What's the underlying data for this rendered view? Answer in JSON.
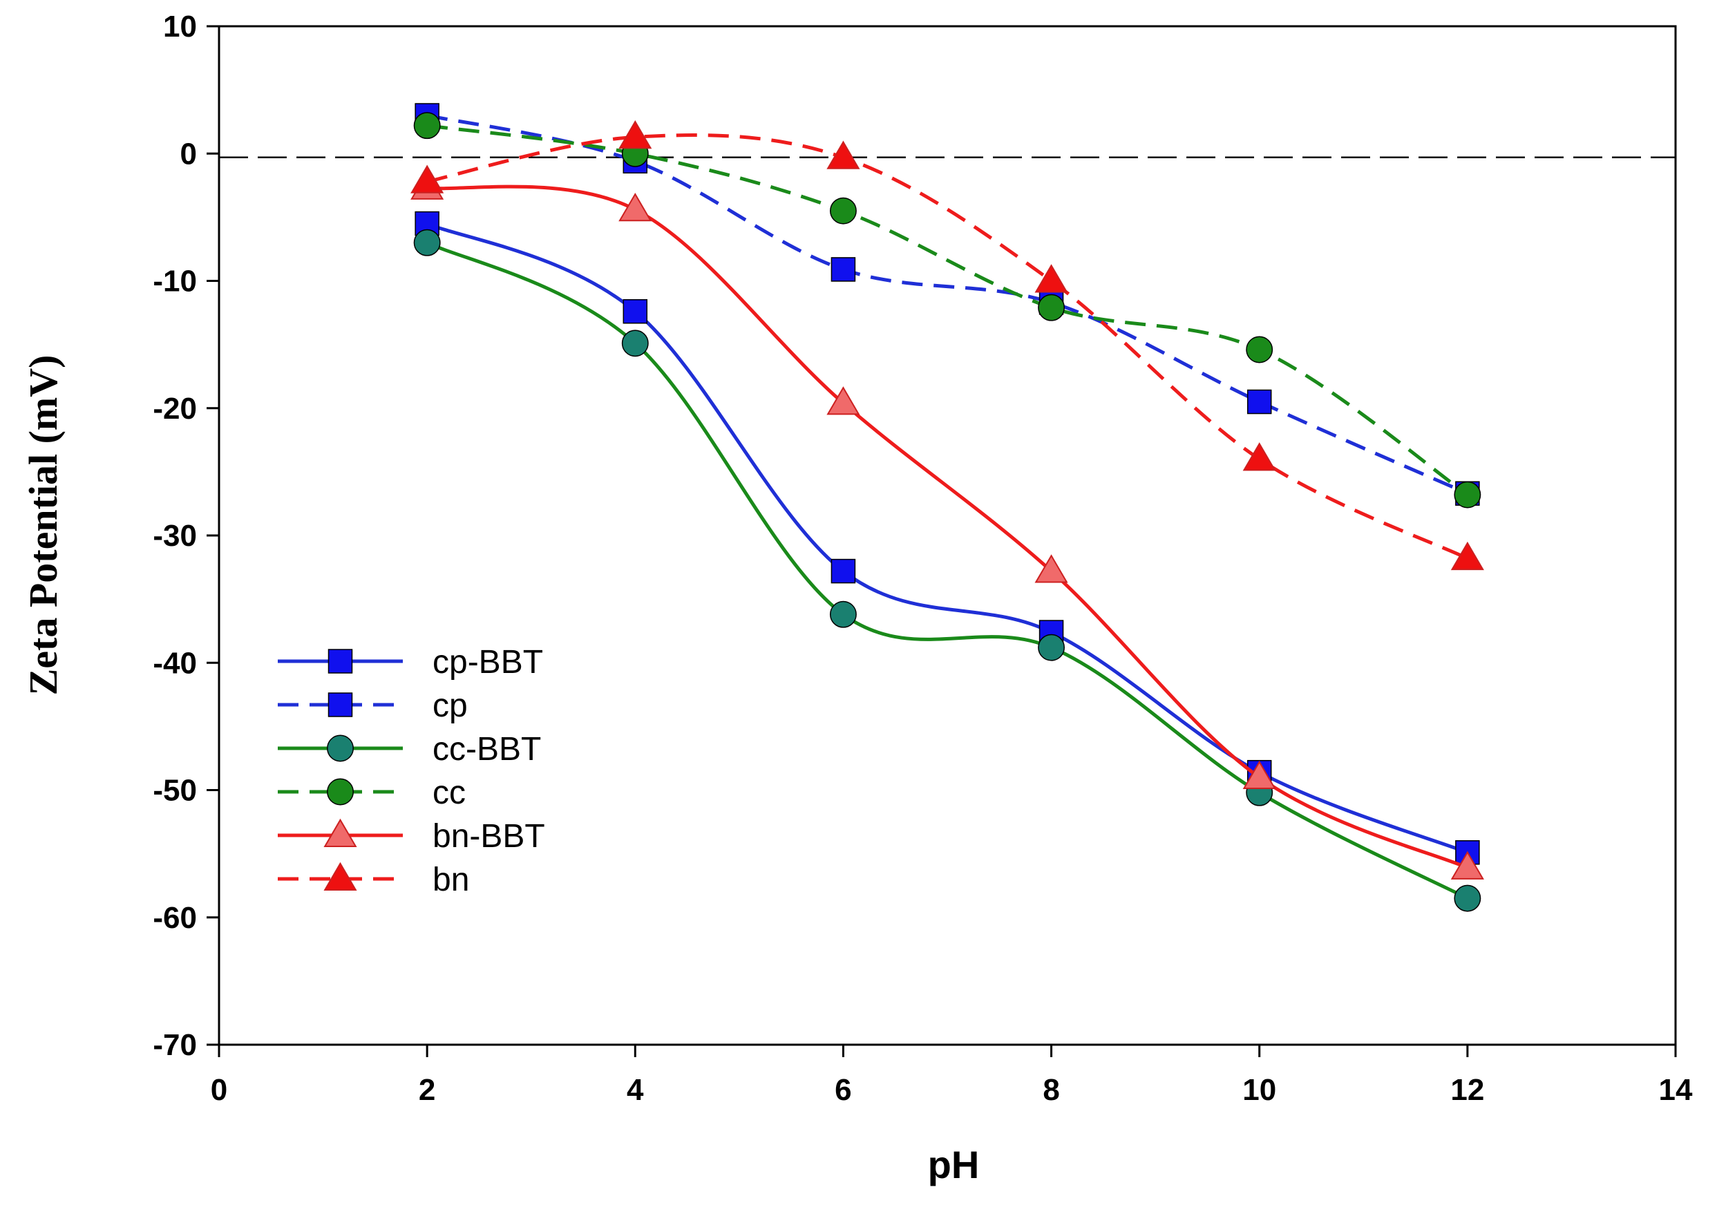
{
  "chart_data": {
    "type": "line",
    "title": "",
    "xlabel": "pH",
    "ylabel": "Zeta Potential (mV)",
    "xlim": [
      0,
      14
    ],
    "ylim": [
      -70,
      10
    ],
    "xticks": [
      0,
      2,
      4,
      6,
      8,
      10,
      12,
      14
    ],
    "xtick_labels": [
      "0",
      "2",
      "4",
      "6",
      "8",
      "10",
      "12",
      "14"
    ],
    "yticks": [
      10,
      0,
      -10,
      -20,
      -30,
      -40,
      -50,
      -60,
      -70
    ],
    "ytick_labels": [
      "10",
      "0",
      "-10",
      "-20",
      "-30",
      "-40",
      "-50",
      "-60",
      "-70"
    ],
    "grid": false,
    "legend_position": "lower-left",
    "reference_line": {
      "y": -0.3,
      "style": "dashed",
      "color": "#000000"
    },
    "series": [
      {
        "name": "cp-BBT",
        "color": "#1f2fd6",
        "marker_color": "#1010ee",
        "line_style": "solid",
        "marker": "square",
        "x": [
          2,
          4,
          6,
          8,
          10,
          12
        ],
        "values": [
          -5.5,
          -12.4,
          -32.8,
          -37.6,
          -48.6,
          -54.9
        ]
      },
      {
        "name": "cp",
        "color": "#1f2fd6",
        "marker_color": "#1010ee",
        "line_style": "dashed",
        "marker": "square",
        "x": [
          2,
          4,
          6,
          8,
          10,
          12
        ],
        "values": [
          3.0,
          -0.6,
          -9.1,
          -11.7,
          -19.5,
          -26.7
        ]
      },
      {
        "name": "cc-BBT",
        "color": "#1a8a1a",
        "marker_color": "#1a8070",
        "line_style": "solid",
        "marker": "circle",
        "x": [
          2,
          4,
          6,
          8,
          10,
          12
        ],
        "values": [
          -7.0,
          -14.9,
          -36.2,
          -38.8,
          -50.2,
          -58.5
        ]
      },
      {
        "name": "cc",
        "color": "#1a8a1a",
        "marker_color": "#1a8a1a",
        "line_style": "dashed",
        "marker": "circle",
        "x": [
          2,
          4,
          6,
          8,
          10,
          12
        ],
        "values": [
          2.2,
          0.0,
          -4.5,
          -12.1,
          -15.4,
          -26.8
        ]
      },
      {
        "name": "bn-BBT",
        "color": "#ee1c1c",
        "marker_color": "#f06a6a",
        "line_style": "solid",
        "marker": "triangle",
        "x": [
          2,
          4,
          6,
          8,
          10,
          12
        ],
        "values": [
          -2.7,
          -4.4,
          -19.6,
          -32.8,
          -49.0,
          -56.1
        ]
      },
      {
        "name": "bn",
        "color": "#ee1c1c",
        "marker_color": "#ee1010",
        "line_style": "dashed",
        "marker": "triangle",
        "x": [
          2,
          4,
          6,
          8,
          10,
          12
        ],
        "values": [
          -2.2,
          1.3,
          -0.3,
          -10.0,
          -24.0,
          -31.8
        ]
      }
    ]
  }
}
